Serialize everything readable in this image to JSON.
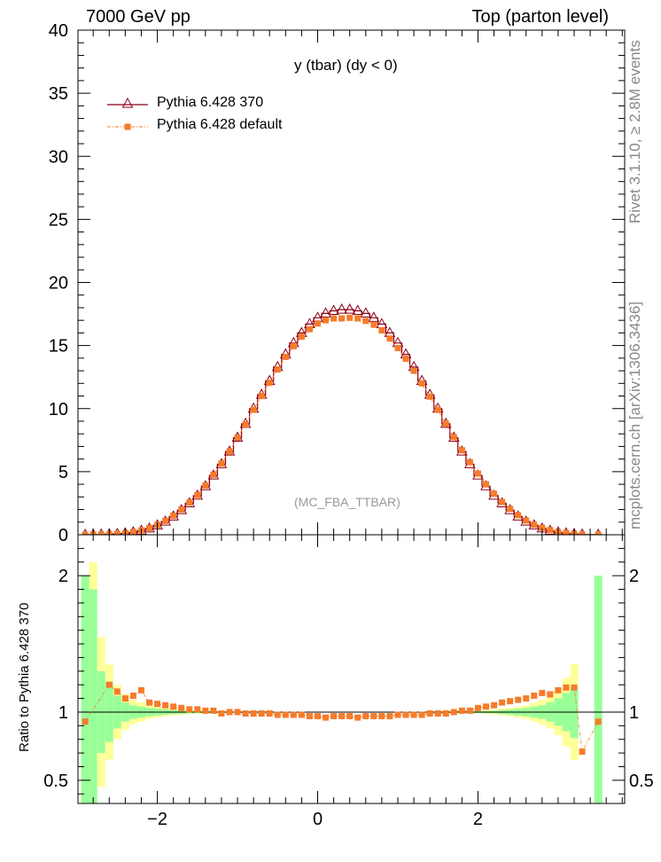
{
  "header": {
    "left": "7000 GeV pp",
    "right": "Top (parton level)"
  },
  "plot_title": "y (tbar) (dy < 0)",
  "analysis_label": "(MC_FBA_TTBAR)",
  "side_labels": {
    "upper": "Rivet 3.1.10, ≥ 2.8M events",
    "lower": "mcplots.cern.ch [arXiv:1306.3436]"
  },
  "ratio_ylabel": "Ratio to Pythia 6.428 370",
  "legend": {
    "entries": [
      "Pythia 6.428 370",
      "Pythia 6.428 default"
    ]
  },
  "colors": {
    "ref": "#8b0019",
    "mc": "#f57c2b",
    "band_inner": "#99ff99",
    "band_outer": "#ffff99"
  },
  "chart_data": [
    {
      "type": "line",
      "panel": "main",
      "xlim": [
        -2.99,
        3.83
      ],
      "ylim": [
        0,
        40
      ],
      "yticks": [
        0,
        5,
        10,
        15,
        20,
        25,
        30,
        35,
        40
      ],
      "x": [
        -2.9,
        -2.8,
        -2.7,
        -2.6,
        -2.5,
        -2.4,
        -2.3,
        -2.2,
        -2.1,
        -2.0,
        -1.9,
        -1.8,
        -1.7,
        -1.6,
        -1.5,
        -1.4,
        -1.3,
        -1.2,
        -1.1,
        -1.0,
        -0.9,
        -0.8,
        -0.7,
        -0.6,
        -0.5,
        -0.4,
        -0.3,
        -0.2,
        -0.1,
        0.0,
        0.1,
        0.2,
        0.3,
        0.4,
        0.5,
        0.6,
        0.7,
        0.8,
        0.9,
        1.0,
        1.1,
        1.2,
        1.3,
        1.4,
        1.5,
        1.6,
        1.7,
        1.8,
        1.9,
        2.0,
        2.1,
        2.2,
        2.3,
        2.4,
        2.5,
        2.6,
        2.7,
        2.8,
        2.9,
        3.0,
        3.1,
        3.2,
        3.3,
        3.5
      ],
      "series": [
        {
          "name": "Pythia 6.428 370",
          "values": [
            0.0,
            0.01,
            0.02,
            0.04,
            0.07,
            0.12,
            0.2,
            0.32,
            0.5,
            0.75,
            1.05,
            1.45,
            1.95,
            2.5,
            3.1,
            3.85,
            4.7,
            5.6,
            6.6,
            7.7,
            8.8,
            10.0,
            11.1,
            12.2,
            13.3,
            14.3,
            15.2,
            16.0,
            16.7,
            17.2,
            17.55,
            17.75,
            17.85,
            17.85,
            17.75,
            17.55,
            17.2,
            16.7,
            16.0,
            15.2,
            14.3,
            13.3,
            12.2,
            11.1,
            10.0,
            8.8,
            7.7,
            6.6,
            5.6,
            4.7,
            3.85,
            3.1,
            2.5,
            1.95,
            1.45,
            1.05,
            0.75,
            0.5,
            0.32,
            0.2,
            0.12,
            0.07,
            0.02,
            0.01
          ]
        },
        {
          "name": "Pythia 6.428 default",
          "values": [
            0.0,
            0.02,
            0.02,
            0.04,
            0.07,
            0.13,
            0.22,
            0.35,
            0.53,
            0.78,
            1.1,
            1.5,
            2.0,
            2.55,
            3.15,
            3.9,
            4.75,
            5.65,
            6.6,
            7.7,
            8.75,
            9.9,
            11.0,
            12.05,
            13.1,
            14.1,
            14.95,
            15.7,
            16.3,
            16.75,
            17.0,
            17.15,
            17.15,
            17.2,
            17.15,
            16.95,
            16.65,
            16.2,
            15.55,
            14.8,
            13.95,
            13.0,
            12.0,
            10.95,
            9.9,
            8.8,
            7.75,
            6.7,
            5.75,
            4.85,
            4.0,
            3.25,
            2.6,
            2.05,
            1.55,
            1.13,
            0.8,
            0.55,
            0.36,
            0.22,
            0.14,
            0.08,
            0.02,
            0.01
          ]
        }
      ]
    },
    {
      "type": "line",
      "panel": "ratio",
      "ylabel": "Ratio to Pythia 6.428 370",
      "xlim": [
        -2.99,
        3.83
      ],
      "ylim": [
        0.33,
        2.3
      ],
      "xticks": [
        -2,
        0,
        2
      ],
      "yticks": [
        0.5,
        1,
        2
      ],
      "reference_line": 1,
      "band_x": [
        -2.9,
        -2.8,
        -2.7,
        -2.6,
        -2.5,
        -2.4,
        -2.3,
        -2.2,
        -2.1,
        -2.0,
        -1.9,
        -1.8,
        -1.7,
        -1.6,
        -1.5,
        -1.4,
        -1.3,
        -1.2,
        1.8,
        1.9,
        2.0,
        2.1,
        2.2,
        2.3,
        2.4,
        2.5,
        2.6,
        2.7,
        2.8,
        2.9,
        3.0,
        3.1,
        3.2,
        3.5
      ],
      "band_inner": [
        1.0,
        0.9,
        0.3,
        0.22,
        0.12,
        0.07,
        0.05,
        0.04,
        0.03,
        0.025,
        0.02,
        0.015,
        0.012,
        0.01,
        0.008,
        0.006,
        0.005,
        0.004,
        0.004,
        0.005,
        0.006,
        0.008,
        0.01,
        0.015,
        0.02,
        0.025,
        0.03,
        0.04,
        0.05,
        0.07,
        0.1,
        0.14,
        0.19,
        1.0
      ],
      "band_outer": [
        1.0,
        1.1,
        0.55,
        0.35,
        0.2,
        0.13,
        0.09,
        0.07,
        0.05,
        0.04,
        0.03,
        0.025,
        0.02,
        0.015,
        0.012,
        0.01,
        0.008,
        0.006,
        0.006,
        0.008,
        0.01,
        0.013,
        0.018,
        0.025,
        0.03,
        0.04,
        0.05,
        0.07,
        0.09,
        0.12,
        0.17,
        0.25,
        0.35,
        1.0
      ],
      "series": [
        {
          "name": "Pythia 6.428 default",
          "x": [
            -2.9,
            -2.6,
            -2.5,
            -2.4,
            -2.3,
            -2.2,
            -2.1,
            -2.0,
            -1.9,
            -1.8,
            -1.7,
            -1.6,
            -1.5,
            -1.4,
            -1.3,
            -1.2,
            -1.1,
            -1.0,
            -0.9,
            -0.8,
            -0.7,
            -0.6,
            -0.5,
            -0.4,
            -0.3,
            -0.2,
            -0.1,
            0.0,
            0.1,
            0.2,
            0.3,
            0.4,
            0.5,
            0.6,
            0.7,
            0.8,
            0.9,
            1.0,
            1.1,
            1.2,
            1.3,
            1.4,
            1.5,
            1.6,
            1.7,
            1.8,
            1.9,
            2.0,
            2.1,
            2.2,
            2.3,
            2.4,
            2.5,
            2.6,
            2.7,
            2.8,
            2.9,
            3.0,
            3.1,
            3.2,
            3.3,
            3.5
          ],
          "values": [
            0.93,
            1.2,
            1.15,
            1.1,
            1.12,
            1.16,
            1.07,
            1.06,
            1.05,
            1.04,
            1.03,
            1.02,
            1.02,
            1.01,
            1.01,
            0.99,
            1.0,
            1.0,
            0.99,
            0.99,
            0.99,
            0.99,
            0.98,
            0.98,
            0.98,
            0.98,
            0.97,
            0.97,
            0.96,
            0.97,
            0.97,
            0.97,
            0.96,
            0.97,
            0.97,
            0.97,
            0.97,
            0.98,
            0.98,
            0.98,
            0.98,
            0.99,
            0.99,
            0.99,
            1.0,
            1.01,
            1.01,
            1.03,
            1.04,
            1.05,
            1.07,
            1.08,
            1.09,
            1.1,
            1.12,
            1.14,
            1.13,
            1.16,
            1.18,
            1.18,
            0.71,
            0.93
          ]
        }
      ]
    }
  ]
}
